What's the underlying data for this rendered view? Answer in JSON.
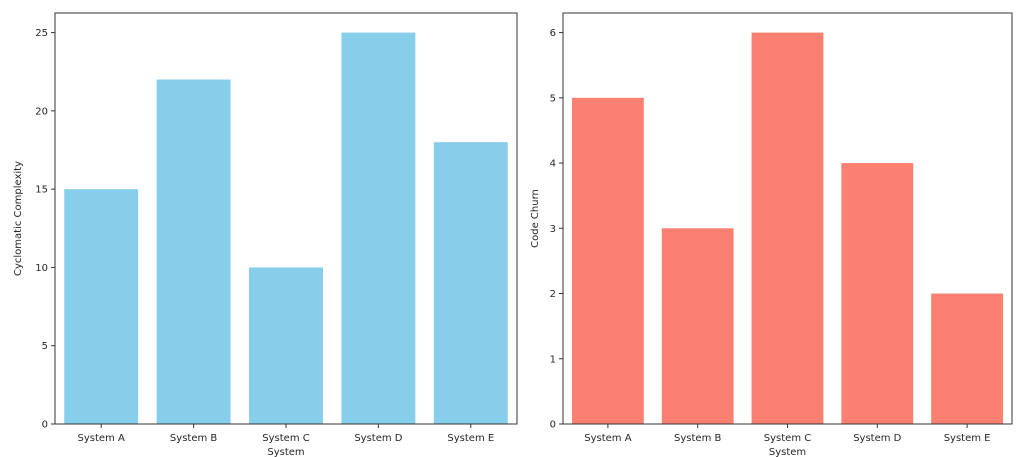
{
  "chart_data": [
    {
      "type": "bar",
      "categories": [
        "System A",
        "System B",
        "System C",
        "System D",
        "System E"
      ],
      "values": [
        15,
        22,
        10,
        25,
        18
      ],
      "title": "",
      "xlabel": "System",
      "ylabel": "Cyclomatic Complexity",
      "ylim": [
        0,
        26.25
      ],
      "yticks": [
        0,
        5,
        10,
        15,
        20,
        25
      ],
      "color": "#87ceeb",
      "grid": false
    },
    {
      "type": "bar",
      "categories": [
        "System A",
        "System B",
        "System C",
        "System D",
        "System E"
      ],
      "values": [
        5,
        3,
        6,
        4,
        2
      ],
      "title": "",
      "xlabel": "System",
      "ylabel": "Code Churn",
      "ylim": [
        0,
        6.3
      ],
      "yticks": [
        0,
        1,
        2,
        3,
        4,
        5,
        6
      ],
      "color": "#fa8072",
      "grid": false
    }
  ]
}
